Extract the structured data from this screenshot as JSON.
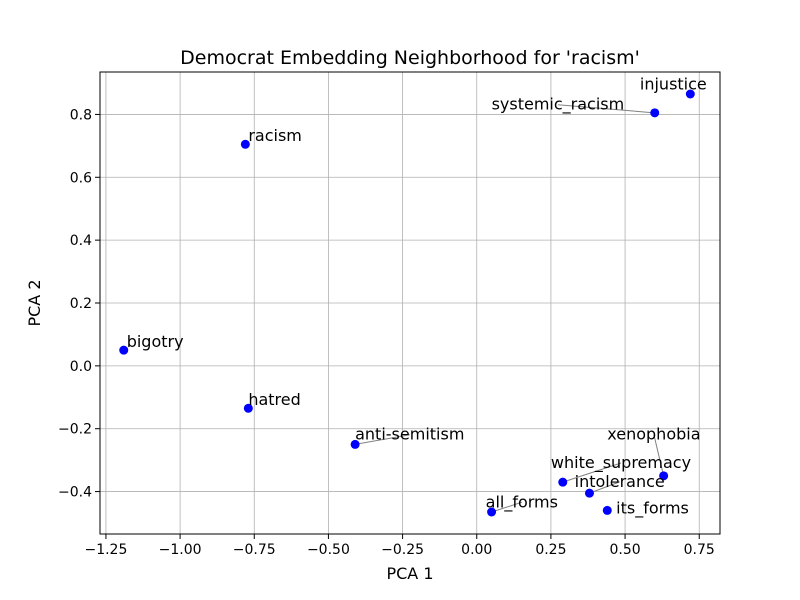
{
  "chart_data": {
    "type": "scatter",
    "title": "Democrat Embedding Neighborhood for 'racism'",
    "xlabel": "PCA 1",
    "ylabel": "PCA 2",
    "xlim": [
      -1.27,
      0.82
    ],
    "ylim": [
      -0.535,
      0.935
    ],
    "xticks": [
      -1.25,
      -1.0,
      -0.75,
      -0.5,
      -0.25,
      0.0,
      0.25,
      0.5,
      0.75
    ],
    "xtick_labels": [
      "−1.25",
      "−1.00",
      "−0.75",
      "−0.50",
      "−0.25",
      "0.00",
      "0.25",
      "0.50",
      "0.75"
    ],
    "yticks": [
      -0.4,
      -0.2,
      0.0,
      0.2,
      0.4,
      0.6,
      0.8
    ],
    "ytick_labels": [
      "−0.4",
      "−0.2",
      "0.0",
      "0.2",
      "0.4",
      "0.6",
      "0.8"
    ],
    "grid": true,
    "marker_color": "#0000ff",
    "leader_color": "#808080",
    "points": [
      {
        "label": "racism",
        "x": -0.78,
        "y": 0.705,
        "lx": -0.77,
        "ly": 0.715,
        "leader": false
      },
      {
        "label": "bigotry",
        "x": -1.19,
        "y": 0.05,
        "lx": -1.18,
        "ly": 0.06,
        "leader": false
      },
      {
        "label": "hatred",
        "x": -0.77,
        "y": -0.135,
        "lx": -0.77,
        "ly": -0.125,
        "leader": false
      },
      {
        "label": "anti-semitism",
        "x": -0.41,
        "y": -0.25,
        "lx": -0.41,
        "ly": -0.235,
        "leader": true
      },
      {
        "label": "injustice",
        "x": 0.72,
        "y": 0.865,
        "lx": 0.55,
        "ly": 0.88,
        "leader": false
      },
      {
        "label": "systemic_racism",
        "x": 0.6,
        "y": 0.805,
        "lx": 0.05,
        "ly": 0.815,
        "leader": true
      },
      {
        "label": "xenophobia",
        "x": 0.63,
        "y": -0.35,
        "lx": 0.44,
        "ly": -0.235,
        "leader": true
      },
      {
        "label": "white_supremacy",
        "x": 0.29,
        "y": -0.37,
        "lx": 0.25,
        "ly": -0.325,
        "leader": true
      },
      {
        "label": "intolerance",
        "x": 0.38,
        "y": -0.405,
        "lx": 0.33,
        "ly": -0.385,
        "leader": true
      },
      {
        "label": "all_forms",
        "x": 0.05,
        "y": -0.465,
        "lx": 0.03,
        "ly": -0.45,
        "leader": true
      },
      {
        "label": "its_forms",
        "x": 0.44,
        "y": -0.46,
        "lx": 0.47,
        "ly": -0.47,
        "leader": false
      }
    ]
  }
}
